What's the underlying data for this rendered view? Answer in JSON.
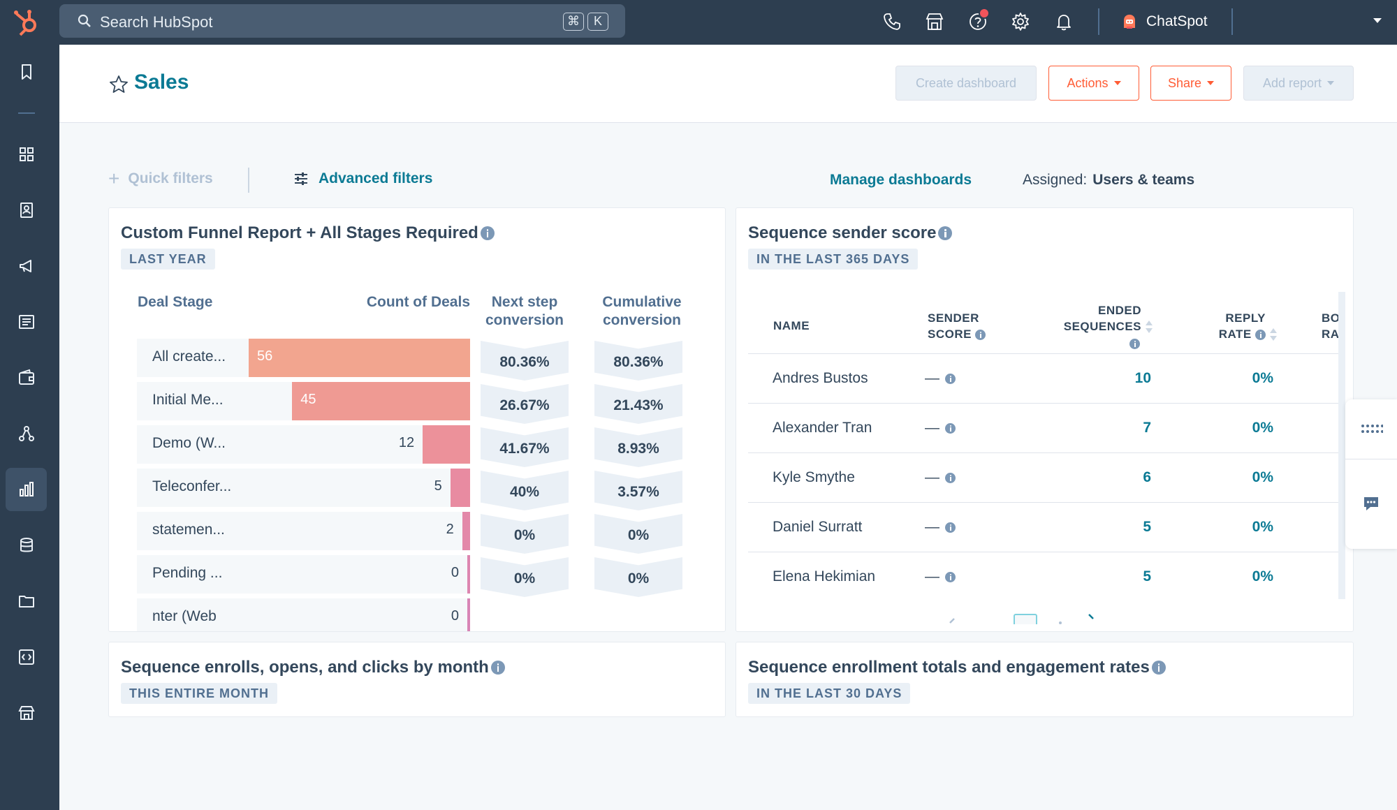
{
  "topbar": {
    "search_placeholder": "Search HubSpot",
    "shortcut_cmd": "⌘",
    "shortcut_key": "K",
    "chatspot_label": "ChatSpot"
  },
  "header": {
    "title": "Sales",
    "create_dashboard": "Create dashboard",
    "actions": "Actions",
    "share": "Share",
    "add_report": "Add report"
  },
  "filters": {
    "quick_filters": "Quick filters",
    "advanced_filters": "Advanced filters",
    "manage_dashboards": "Manage dashboards",
    "assigned_label": "Assigned:",
    "assigned_value": "Users & teams"
  },
  "funnel_card": {
    "title": "Custom Funnel Report + All Stages Required",
    "tag": "LAST YEAR",
    "col_stage": "Deal Stage",
    "col_count": "Count of Deals",
    "col_next_1": "Next step",
    "col_next_2": "conversion",
    "col_cum_1": "Cumulative",
    "col_cum_2": "conversion",
    "rows": [
      {
        "label": "All create...",
        "count": "56",
        "next": "80.36%",
        "cumulative": "80.36%"
      },
      {
        "label": "Initial Me...",
        "count": "45",
        "next": "26.67%",
        "cumulative": "21.43%"
      },
      {
        "label": "Demo (W...",
        "count": "12",
        "next": "41.67%",
        "cumulative": "8.93%"
      },
      {
        "label": "Teleconfer...",
        "count": "5",
        "next": "40%",
        "cumulative": "3.57%"
      },
      {
        "label": "statemen...",
        "count": "2",
        "next": "0%",
        "cumulative": "0%"
      },
      {
        "label": "Pending ...",
        "count": "0",
        "next": "0%",
        "cumulative": "0%"
      },
      {
        "label": "nter (Web",
        "count": "0",
        "next": "",
        "cumulative": ""
      }
    ]
  },
  "chart_data": {
    "type": "bar",
    "title": "Custom Funnel Report + All Stages Required",
    "xlabel": "Deal Stage",
    "ylabel": "Count of Deals",
    "categories": [
      "All create...",
      "Initial Me...",
      "Demo (W...",
      "Teleconfer...",
      "statemen...",
      "Pending ...",
      "nter (Web"
    ],
    "values": [
      56,
      45,
      12,
      5,
      2,
      0,
      0
    ],
    "xlim": [
      0,
      56
    ],
    "bar_colors": [
      "#f2a58f",
      "#ef9a93",
      "#ec919a",
      "#e88ba1",
      "#e388a9",
      "#dd86b0",
      "#d885b6"
    ]
  },
  "sequence_card": {
    "title": "Sequence sender score",
    "tag": "IN THE LAST 365 DAYS",
    "col_name": "NAME",
    "col_sender_1": "SENDER",
    "col_sender_2": "SCORE",
    "col_ended_1": "ENDED",
    "col_ended_2": "SEQUENCES",
    "col_reply_1": "REPLY",
    "col_reply_2": "RATE",
    "col_bounce_1": "BO",
    "col_bounce_2": "RA",
    "rows": [
      {
        "name": "Andres Bustos",
        "score": "—",
        "ended": "10",
        "reply": "0%"
      },
      {
        "name": "Alexander Tran",
        "score": "—",
        "ended": "7",
        "reply": "0%"
      },
      {
        "name": "Kyle Smythe",
        "score": "—",
        "ended": "6",
        "reply": "0%"
      },
      {
        "name": "Daniel Surratt",
        "score": "—",
        "ended": "5",
        "reply": "0%"
      },
      {
        "name": "Elena Hekimian",
        "score": "—",
        "ended": "5",
        "reply": "0%"
      }
    ]
  },
  "enrolls_card": {
    "title": "Sequence enrolls, opens, and clicks by month",
    "tag": "THIS ENTIRE MONTH"
  },
  "totals_card": {
    "title": "Sequence enrollment totals and engagement rates",
    "tag": "IN THE LAST 30 DAYS"
  },
  "colors": {
    "topbar_bg": "#2d3e50",
    "accent_teal": "#0b7a94",
    "accent_orange": "#ff5c35",
    "notification": "#f2545b"
  }
}
